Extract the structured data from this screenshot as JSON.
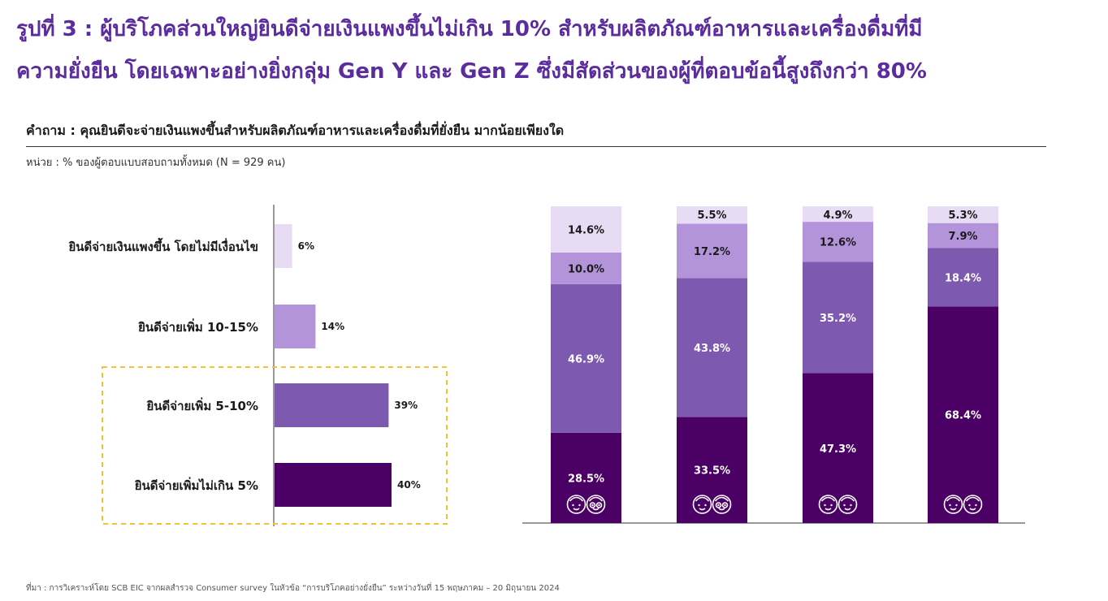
{
  "headline": {
    "line1": "รูปที่ 3 : ผู้บริโภคส่วนใหญ่ยินดีจ่ายเงินแพงขึ้นไม่เกิน 10% สำหรับผลิตภัณฑ์อาหารและเครื่องดื่มที่มี",
    "line2": "ความยั่งยืน โดยเฉพาะอย่างยิ่งกลุ่ม Gen Y และ Gen Z ซึ่งมีสัดส่วนของผู้ที่ตอบข้อนี้สูงถึงกว่า 80%"
  },
  "question": "คำถาม : คุณยินดีจะจ่ายเงินแพงขึ้นสำหรับผลิตภัณฑ์อาหารและเครื่องดื่มที่ยั่งยืน มากน้อยเพียงใด",
  "unit": "หน่วย : % ของผู้ตอบแบบสอบถามทั้งหมด (N = 929 คน)",
  "source": "ที่มา : การวิเคราะห์โดย SCB EIC จากผลสำรวจ Consumer survey ในหัวข้อ “การบริโภคอย่างยั่งยืน” ระหว่างวันที่ 15 พฤษภาคม – 20 มิถุนายน 2024",
  "colors": {
    "title": "#5b2c9e",
    "c1": "#e7dcf3",
    "c2": "#b394db",
    "c3": "#7e59b0",
    "c4": "#4b0065",
    "highlight": "#f2c230"
  },
  "chart_data": [
    {
      "type": "bar",
      "orientation": "horizontal",
      "categories": [
        "ยินดีจ่ายเงินแพงขึ้น โดยไม่มีเงื่อนไข",
        "ยินดีจ่ายเพิ่ม 10-15%",
        "ยินดีจ่ายเพิ่ม 5-10%",
        "ยินดีจ่ายเพิ่มไม่เกิน 5%"
      ],
      "values": [
        6,
        14,
        39,
        40
      ],
      "value_labels": [
        "6%",
        "14%",
        "39%",
        "40%"
      ],
      "colors": [
        "#e7dcf3",
        "#b394db",
        "#7e59b0",
        "#4b0065"
      ],
      "highlight": "dashed box around the last two categories"
    },
    {
      "type": "bar",
      "stacked": true,
      "categories_icons": [
        "baby-boomer-icon",
        "gen-x-icon",
        "gen-y-icon",
        "gen-z-icon"
      ],
      "ylim": [
        0,
        100
      ],
      "series": [
        {
          "values": [
            28.5,
            33.5,
            47.3,
            68.4
          ],
          "labels": [
            "28.5%",
            "33.5%",
            "47.3%",
            "68.4%"
          ],
          "color": "#4b0065"
        },
        {
          "values": [
            46.9,
            43.8,
            35.2,
            18.4
          ],
          "labels": [
            "46.9%",
            "43.8%",
            "35.2%",
            "18.4%"
          ],
          "color": "#7e59b0"
        },
        {
          "values": [
            10.0,
            17.2,
            12.6,
            7.9
          ],
          "labels": [
            "10.0%",
            "17.2%",
            "12.6%",
            "7.9%"
          ],
          "color": "#b394db"
        },
        {
          "values": [
            14.6,
            5.5,
            4.9,
            5.3
          ],
          "labels": [
            "14.6%",
            "5.5%",
            "4.9%",
            "5.3%"
          ],
          "color": "#e7dcf3"
        }
      ]
    }
  ]
}
